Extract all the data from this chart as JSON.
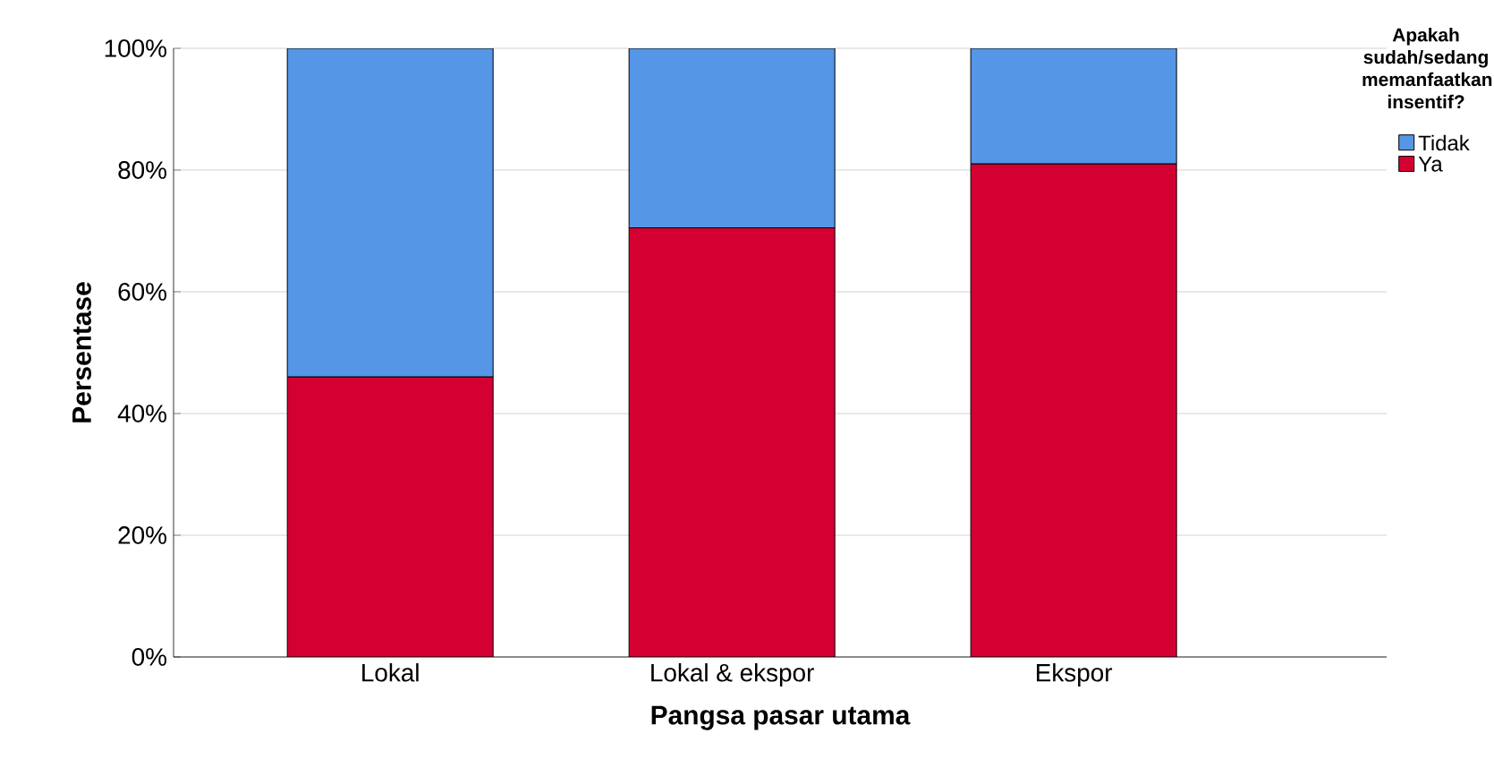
{
  "chart_data": {
    "type": "bar",
    "stacked": true,
    "xlabel": "Pangsa pasar utama",
    "ylabel": "Persentase",
    "legend_title": "Apakah sudah/sedang memanfaatkan insentif?",
    "legend": "right",
    "grid": "y",
    "categories": [
      "Lokal",
      "Lokal & ekspor",
      "Ekspor"
    ],
    "series": [
      {
        "name": "Ya",
        "color": "#d50032",
        "values": [
          46,
          70.5,
          81
        ]
      },
      {
        "name": "Tidak",
        "color": "#5596e6",
        "values": [
          54,
          29.5,
          19
        ]
      }
    ],
    "ylim": [
      0,
      100
    ],
    "yticks": [
      {
        "value": 0,
        "label": "0%"
      },
      {
        "value": 20,
        "label": "20%"
      },
      {
        "value": 40,
        "label": "40%"
      },
      {
        "value": 60,
        "label": "60%"
      },
      {
        "value": 80,
        "label": "80%"
      },
      {
        "value": 100,
        "label": "100%"
      }
    ]
  }
}
